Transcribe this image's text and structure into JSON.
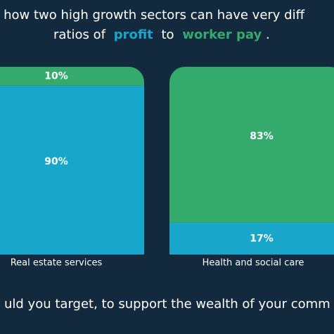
{
  "chart_data": {
    "type": "stacked_bar",
    "title": {
      "line1": "r how two high growth sectors can have very diff",
      "line2": [
        "ratios of",
        "profit",
        "to",
        "worker pay",
        "."
      ]
    },
    "footer": "uld you target, to support the wealth of your comm",
    "categories": [
      "Real estate services",
      "Health and social care"
    ],
    "series": [
      {
        "name": "profit",
        "color": "#19a6cb",
        "values": [
          90,
          17
        ],
        "value_labels": [
          "90%",
          "17%"
        ]
      },
      {
        "name": "worker pay",
        "color": "#35aa6d",
        "values": [
          10,
          83
        ],
        "value_labels": [
          "10%",
          "83%"
        ]
      }
    ],
    "ylim": [
      0,
      100
    ]
  }
}
